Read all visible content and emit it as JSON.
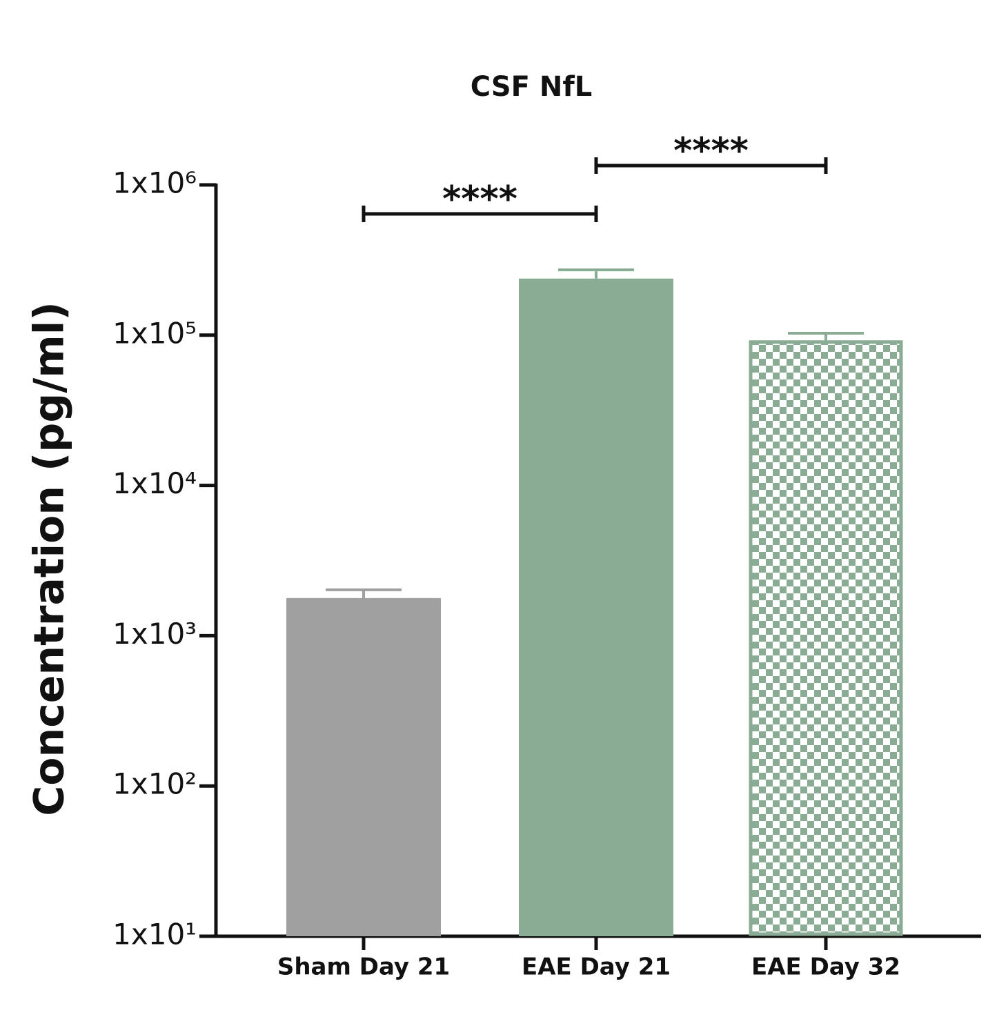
{
  "chart_data": {
    "type": "bar",
    "title": "CSF NfL",
    "y_label": "Concentration (pg/ml)",
    "categories": [
      "Sham Day 21",
      "EAE Day 21",
      "EAE Day 32"
    ],
    "values": [
      1780,
      238000,
      90000
    ],
    "errors": [
      240,
      34000,
      13000
    ],
    "colors": [
      "#a0a0a0",
      "#8aac94",
      "#8aac94"
    ],
    "patterns": [
      "solid",
      "solid",
      "checker"
    ],
    "log_scale": true,
    "ylim": [
      10,
      1000000
    ],
    "yticks": [
      {
        "value": 10,
        "label": "1x10¹"
      },
      {
        "value": 100,
        "label": "1x10²"
      },
      {
        "value": 1000,
        "label": "1x10³"
      },
      {
        "value": 10000,
        "label": "1x10⁴"
      },
      {
        "value": 100000,
        "label": "1x10⁵"
      },
      {
        "value": 1000000,
        "label": "1x10⁶"
      }
    ],
    "comparisons": [
      {
        "label": "****",
        "groups": [
          "Sham Day 21",
          "EAE Day 21"
        ]
      },
      {
        "label": "****",
        "groups": [
          "EAE Day 21",
          "EAE Day 32"
        ]
      }
    ]
  }
}
